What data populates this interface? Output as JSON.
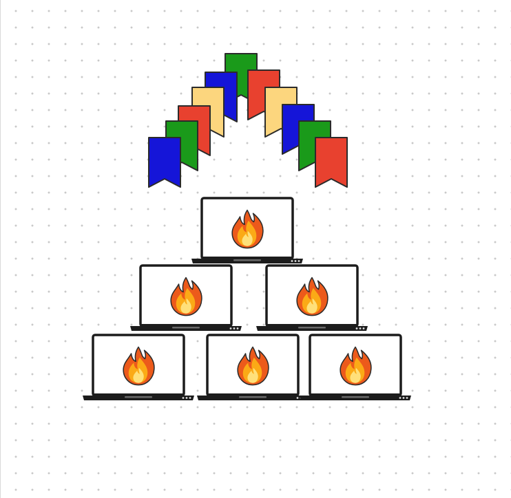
{
  "colors": {
    "blue": "#1515d8",
    "green": "#1a9a1a",
    "red": "#e8412f",
    "yellow": "#fcd67e",
    "outline": "#2b2b2b",
    "laptop_body": "#1c1c1c",
    "screen": "#ffffff",
    "flame_outer": "#ec5a1b",
    "flame_mid": "#fbaa16",
    "flame_inner": "#ffe07a",
    "grid_dot": "#c9c9c9"
  },
  "bunting": {
    "flag_icon": "bookmark-flag-icon",
    "left_arm": [
      "blue",
      "green",
      "red",
      "yellow",
      "blue"
    ],
    "apex": "green",
    "right_arm": [
      "red",
      "yellow",
      "blue",
      "green",
      "red"
    ]
  },
  "laptop_pyramid": {
    "laptop_icon": "laptop-icon",
    "screen_icon": "fire-icon",
    "rows": [
      {
        "count": 1
      },
      {
        "count": 2
      },
      {
        "count": 3
      }
    ]
  }
}
